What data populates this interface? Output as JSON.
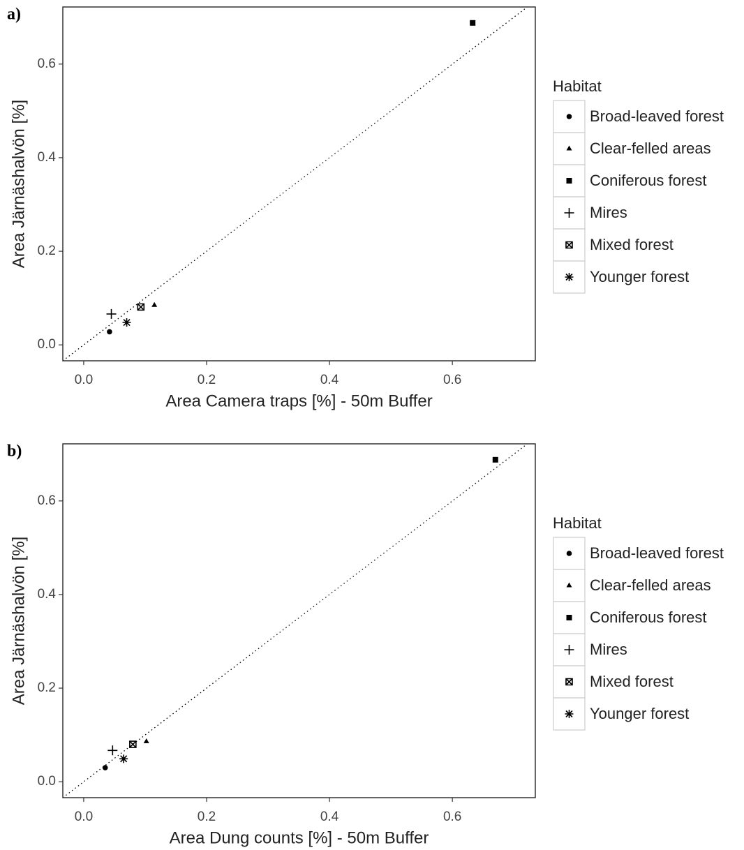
{
  "chart_data": [
    {
      "type": "scatter",
      "panel_label": "a)",
      "x_label": "Area Camera traps [%] - 50m Buffer",
      "y_label": "Area Järnäshalvön [%]",
      "xlim": [
        -0.034,
        0.735
      ],
      "ylim": [
        -0.034,
        0.722
      ],
      "xticks": [
        {
          "value": 0,
          "label": "0.0"
        },
        0.2,
        0.4,
        0.6
      ],
      "yticks": [
        {
          "value": 0,
          "label": "0.0"
        },
        0.2,
        0.4,
        0.6
      ],
      "diagonal": true,
      "legend_title": "Habitat",
      "series": [
        {
          "name": "Broad-leaved forest",
          "shape": "circle",
          "color": "#000000",
          "x": [
            0.042
          ],
          "values": [
            0.028
          ]
        },
        {
          "name": "Clear-felled areas",
          "shape": "triangle",
          "color": "#000000",
          "x": [
            0.115
          ],
          "values": [
            0.085
          ]
        },
        {
          "name": "Coniferous forest",
          "shape": "square",
          "color": "#000000",
          "x": [
            0.633
          ],
          "values": [
            0.688
          ]
        },
        {
          "name": "Mires",
          "shape": "plus",
          "color": "#000000",
          "x": [
            0.045
          ],
          "values": [
            0.066
          ]
        },
        {
          "name": "Mixed forest",
          "shape": "boxcross",
          "color": "#000000",
          "x": [
            0.093
          ],
          "values": [
            0.081
          ]
        },
        {
          "name": "Younger forest",
          "shape": "asterisk",
          "color": "#000000",
          "x": [
            0.07
          ],
          "values": [
            0.048
          ]
        }
      ]
    },
    {
      "type": "scatter",
      "panel_label": "b)",
      "x_label": "Area Dung counts [%] - 50m Buffer",
      "y_label": "Area Järnäshalvön [%]",
      "xlim": [
        -0.034,
        0.735
      ],
      "ylim": [
        -0.034,
        0.722
      ],
      "xticks": [
        {
          "value": 0,
          "label": "0.0"
        },
        0.2,
        0.4,
        0.6
      ],
      "yticks": [
        {
          "value": 0,
          "label": "0.0"
        },
        0.2,
        0.4,
        0.6
      ],
      "diagonal": true,
      "legend_title": "Habitat",
      "series": [
        {
          "name": "Broad-leaved forest",
          "shape": "circle",
          "color": "#000000",
          "x": [
            0.035
          ],
          "values": [
            0.03
          ]
        },
        {
          "name": "Clear-felled areas",
          "shape": "triangle",
          "color": "#000000",
          "x": [
            0.102
          ],
          "values": [
            0.086
          ]
        },
        {
          "name": "Coniferous forest",
          "shape": "square",
          "color": "#000000",
          "x": [
            0.67
          ],
          "values": [
            0.688
          ]
        },
        {
          "name": "Mires",
          "shape": "plus",
          "color": "#000000",
          "x": [
            0.047
          ],
          "values": [
            0.067
          ]
        },
        {
          "name": "Mixed forest",
          "shape": "boxcross",
          "color": "#000000",
          "x": [
            0.08
          ],
          "values": [
            0.08
          ]
        },
        {
          "name": "Younger forest",
          "shape": "asterisk",
          "color": "#000000",
          "x": [
            0.065
          ],
          "values": [
            0.049
          ]
        }
      ]
    }
  ]
}
